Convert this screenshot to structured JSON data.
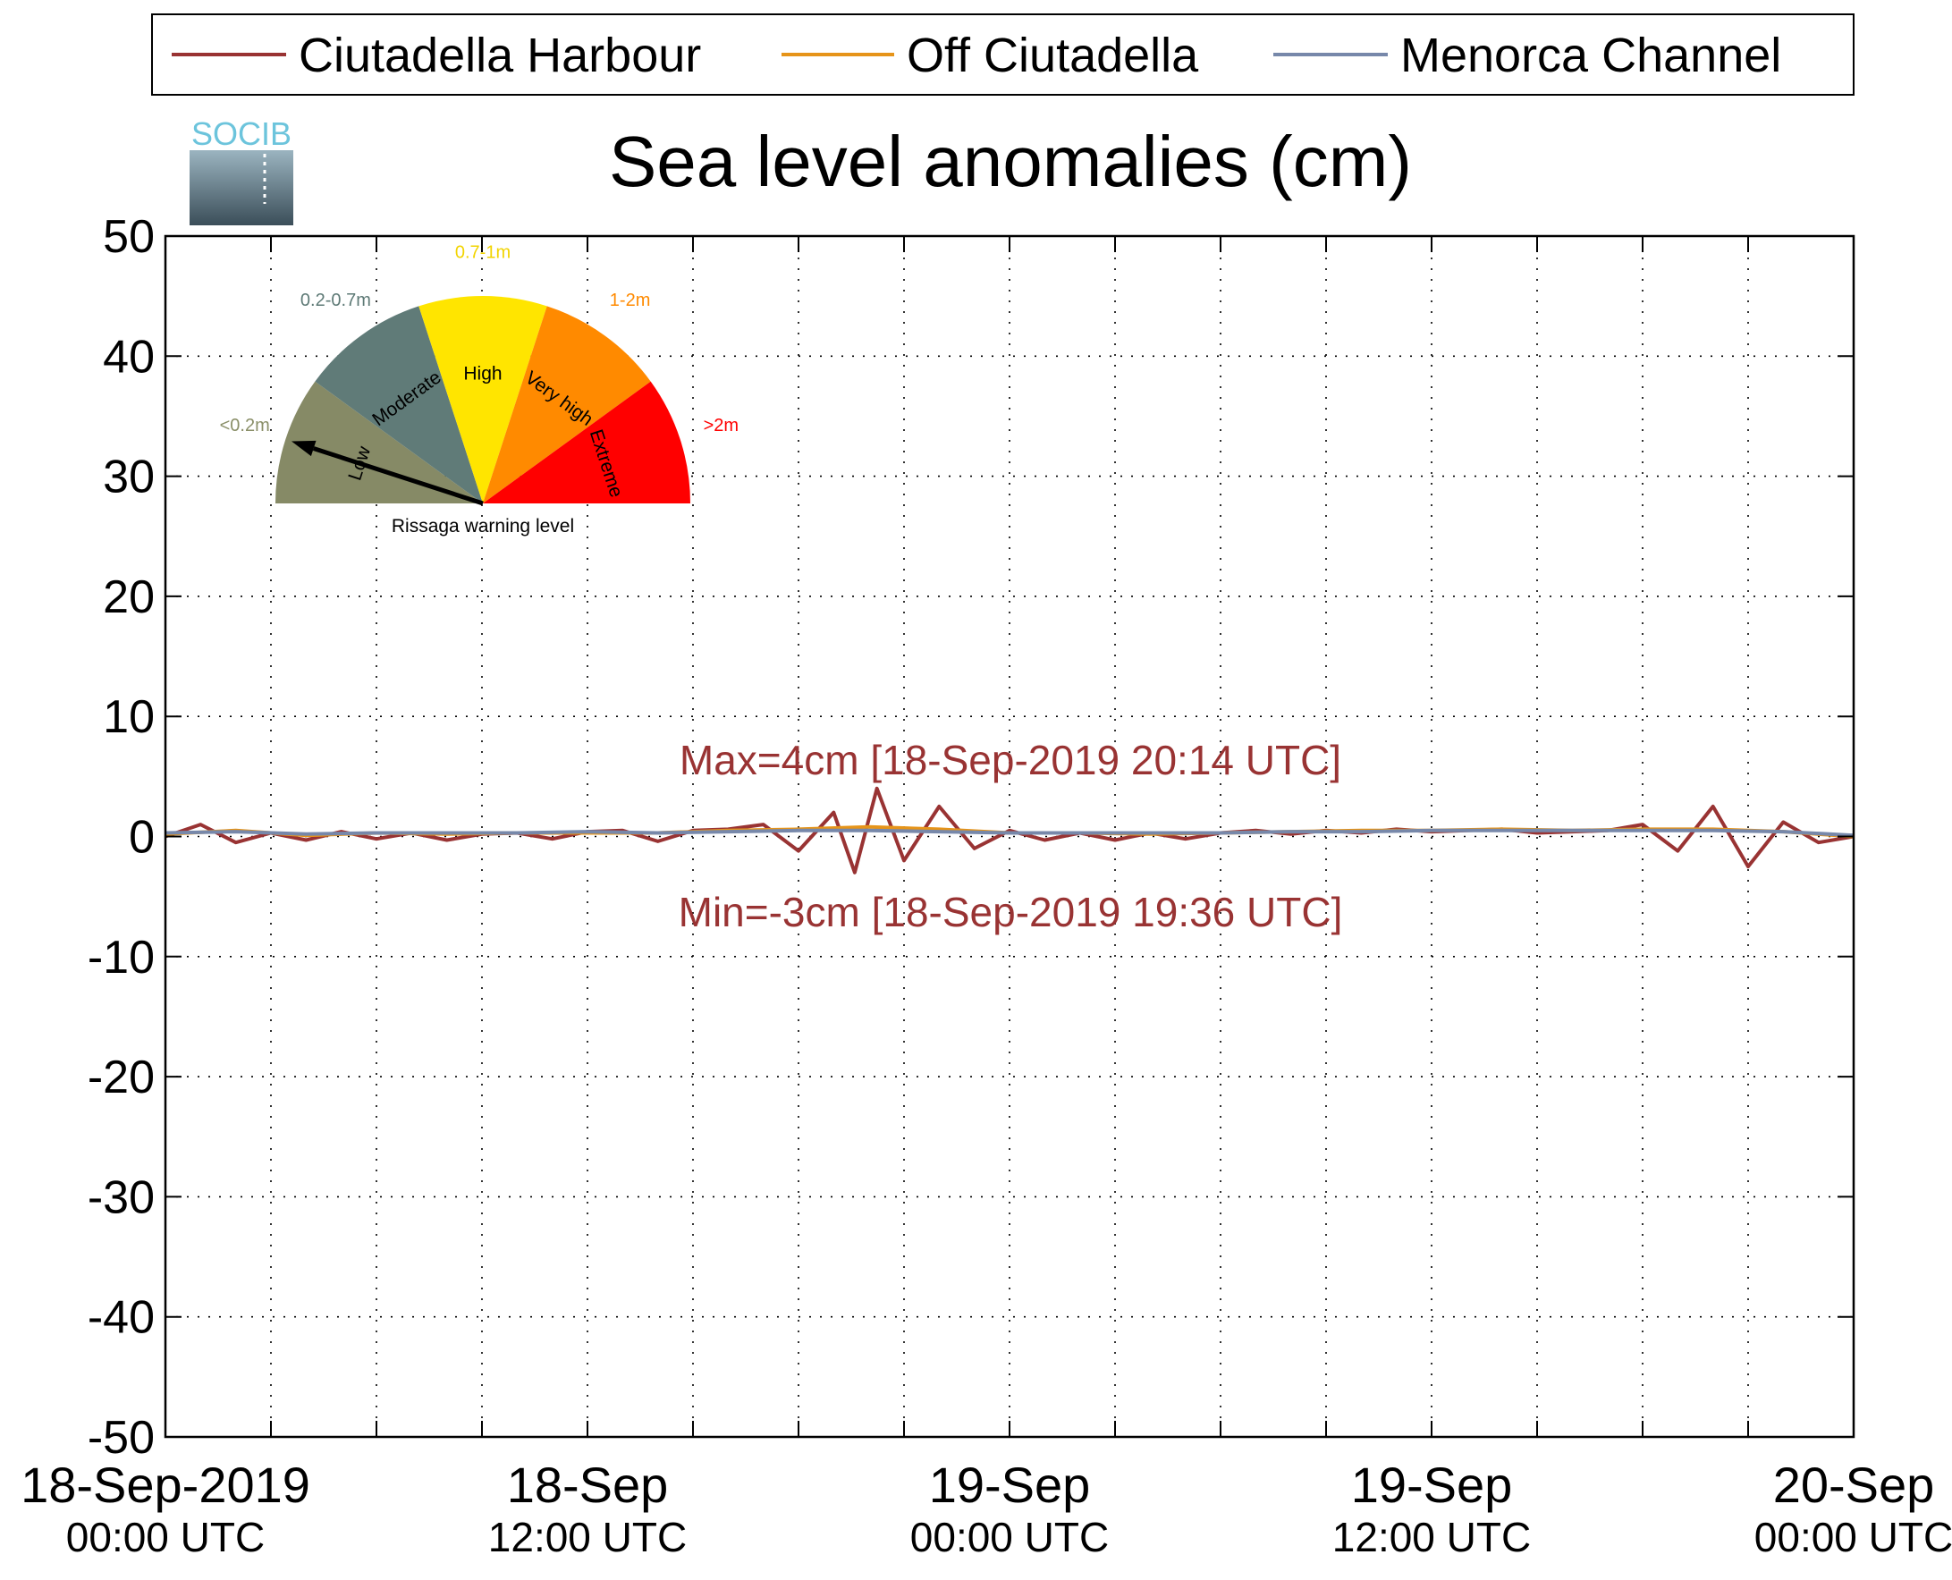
{
  "chart_data": {
    "type": "line",
    "title": "Sea level anomalies (cm)",
    "logo_text": "SOCIB",
    "xlabel": "",
    "ylabel": "",
    "ylim": [
      -50,
      50
    ],
    "yticks": [
      50,
      40,
      30,
      20,
      10,
      0,
      -10,
      -20,
      -30,
      -40,
      -50
    ],
    "yticks_labels": [
      "50",
      "40",
      "30",
      "20",
      "10",
      "0",
      "-10",
      "-20",
      "-30",
      "-40",
      "-50"
    ],
    "x_unit": "hours since 18-Sep-2019 00:00 UTC",
    "xlim": [
      0,
      48
    ],
    "xtick_labels": [
      {
        "date": "18-Sep-2019",
        "time": "00:00 UTC"
      },
      {
        "date": "18-Sep",
        "time": "12:00 UTC"
      },
      {
        "date": "19-Sep",
        "time": "00:00 UTC"
      },
      {
        "date": "19-Sep",
        "time": "12:00 UTC"
      },
      {
        "date": "20-Sep",
        "time": "00:00 UTC"
      }
    ],
    "legend": {
      "position": "top"
    },
    "grid": true,
    "series": [
      {
        "name": "Ciutadella Harbour",
        "color": "#993333",
        "x": [
          0,
          1,
          2,
          3,
          4,
          5,
          6,
          7,
          8,
          9,
          10,
          11,
          12,
          13,
          14,
          15,
          16,
          17,
          18,
          19,
          19.6,
          20.23,
          21,
          22,
          23,
          24,
          25,
          26,
          27,
          28,
          29,
          30,
          31,
          32,
          33,
          34,
          35,
          36,
          37,
          38,
          39,
          40,
          41,
          42,
          43,
          44,
          45,
          46,
          47,
          48
        ],
        "y": [
          0.0,
          1.0,
          -0.5,
          0.3,
          -0.3,
          0.4,
          -0.2,
          0.3,
          -0.3,
          0.2,
          0.3,
          -0.2,
          0.4,
          0.5,
          -0.4,
          0.5,
          0.6,
          1.0,
          -1.2,
          2.0,
          -3.0,
          4.0,
          -2.0,
          2.5,
          -1.0,
          0.5,
          -0.3,
          0.3,
          -0.3,
          0.3,
          -0.2,
          0.3,
          0.5,
          0.2,
          0.5,
          0.3,
          0.6,
          0.4,
          0.5,
          0.6,
          0.3,
          0.4,
          0.5,
          1.0,
          -1.2,
          2.5,
          -2.5,
          1.2,
          -0.5,
          0.0
        ]
      },
      {
        "name": "Off Ciutadella",
        "color": "#e69419",
        "x": [
          0,
          2,
          4,
          6,
          8,
          10,
          12,
          14,
          16,
          18,
          20,
          22,
          24,
          26,
          28,
          30,
          32,
          34,
          36,
          38,
          40,
          42,
          44,
          46,
          48
        ],
        "y": [
          0.2,
          0.5,
          0.1,
          0.3,
          0.2,
          0.3,
          0.3,
          0.3,
          0.5,
          0.6,
          0.8,
          0.6,
          0.3,
          0.3,
          0.2,
          0.3,
          0.4,
          0.5,
          0.5,
          0.6,
          0.5,
          0.6,
          0.6,
          0.4,
          0.0
        ]
      },
      {
        "name": "Menorca Channel",
        "color": "#7788aa",
        "x": [
          0,
          2,
          4,
          6,
          8,
          10,
          12,
          14,
          16,
          18,
          20,
          22,
          24,
          26,
          28,
          30,
          32,
          34,
          36,
          38,
          40,
          42,
          44,
          46,
          48
        ],
        "y": [
          0.3,
          0.4,
          0.2,
          0.3,
          0.3,
          0.3,
          0.4,
          0.3,
          0.4,
          0.5,
          0.5,
          0.4,
          0.3,
          0.3,
          0.3,
          0.3,
          0.4,
          0.4,
          0.5,
          0.5,
          0.5,
          0.5,
          0.5,
          0.4,
          0.1
        ]
      }
    ],
    "annotations": {
      "max_text": "Max=4cm [18-Sep-2019 20:14 UTC]",
      "min_text": "Min=-3cm [18-Sep-2019 19:36 UTC]",
      "color": "#993333"
    },
    "gauge": {
      "title": "Rissaga warning level",
      "current_level": "Low",
      "segments": [
        {
          "name": "Low",
          "range": "<0.2m",
          "color": "#868a66",
          "label_color": "#8a8f68"
        },
        {
          "name": "Moderate",
          "range": "0.2-0.7m",
          "color": "#607b78",
          "label_color": "#5e7a76"
        },
        {
          "name": "High",
          "range": "0.7-1m",
          "color": "#ffe500",
          "label_color": "#f2d400"
        },
        {
          "name": "Very high",
          "range": "1-2m",
          "color": "#ff8a00",
          "label_color": "#ff8a00"
        },
        {
          "name": "Extreme",
          "range": ">2m",
          "color": "#ff0000",
          "label_color": "#ff0000"
        }
      ]
    }
  }
}
